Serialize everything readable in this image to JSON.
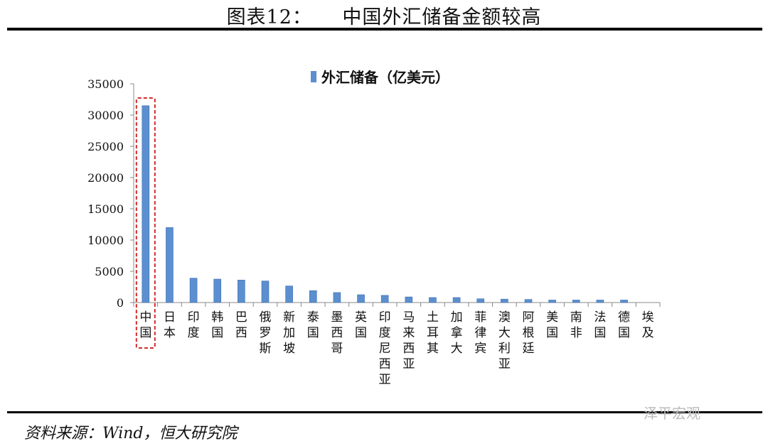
{
  "title": "图表12：　　中国外汇储备金额较高",
  "source": "资料来源：Wind，恒大研究院",
  "watermark": "泽平宏观",
  "chart_data": {
    "type": "bar",
    "title": "",
    "legend": {
      "label": "外汇储备（亿美元）",
      "position": "top"
    },
    "categories": [
      "中国",
      "日本",
      "印度",
      "韩国",
      "巴西",
      "俄罗斯",
      "新加坡",
      "泰国",
      "墨西哥",
      "英国",
      "印度尼西亚",
      "马来西亚",
      "土耳其",
      "加拿大",
      "菲律宾",
      "澳大利亚",
      "阿根廷",
      "美国",
      "南非",
      "法国",
      "德国",
      "埃及"
    ],
    "values": [
      31500,
      12000,
      3900,
      3750,
      3600,
      3450,
      2650,
      1900,
      1600,
      1250,
      1150,
      900,
      800,
      800,
      600,
      550,
      500,
      400,
      400,
      400,
      400,
      0
    ],
    "ylim": [
      0,
      35000
    ],
    "yticks": [
      "0",
      "5000",
      "10000",
      "15000",
      "20000",
      "25000",
      "30000",
      "35000"
    ],
    "grid": false,
    "highlight": "中国",
    "colors": {
      "bar": "#5b8fd0",
      "highlight_box": "#d42a2a"
    }
  }
}
